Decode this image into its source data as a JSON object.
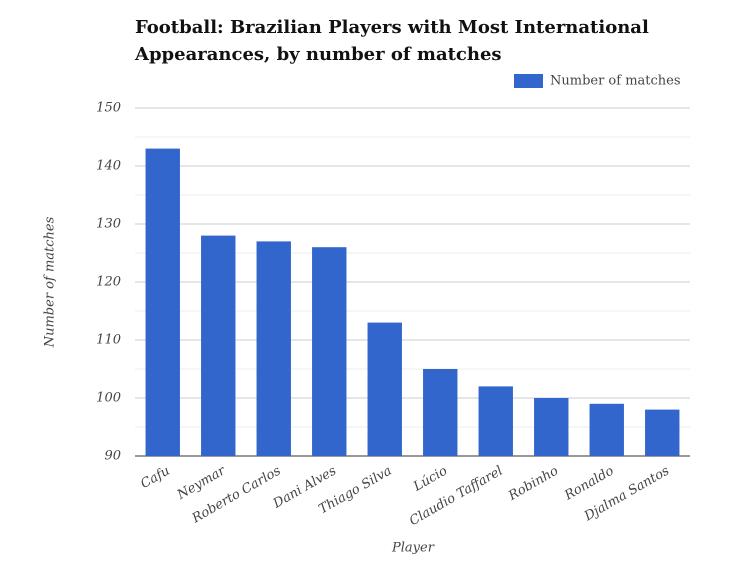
{
  "chart_data": {
    "type": "bar",
    "title": "Football: Brazilian Players with Most International Appearances, by number of matches",
    "x_label": "Player",
    "y_label": "Number of matches",
    "categories": [
      "Cafu",
      "Neymar",
      "Roberto Carlos",
      "Dani Alves",
      "Thiago Silva",
      "Lúcio",
      "Claudio Taffarel",
      "Robinho",
      "Ronaldo",
      "Djalma Santos"
    ],
    "series": [
      {
        "name": "Number of matches",
        "color": "#3366cc",
        "values": [
          143,
          128,
          127,
          126,
          113,
          105,
          102,
          100,
          99,
          98
        ]
      }
    ],
    "ylim": [
      90,
      150
    ],
    "yticks": [
      90,
      100,
      110,
      120,
      130,
      140,
      150
    ],
    "minor_yticks": [
      95,
      105,
      115,
      125,
      135,
      145
    ],
    "grid": true,
    "legend": "top-right"
  }
}
